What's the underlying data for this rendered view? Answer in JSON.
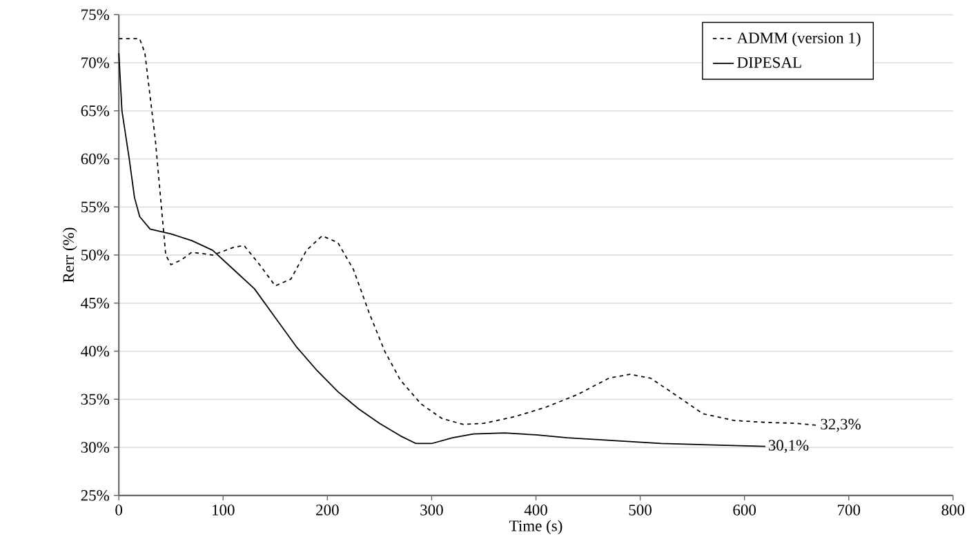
{
  "chart_data": {
    "type": "line",
    "xlabel": "Time (s)",
    "ylabel": "Rerr (%)",
    "xlim": [
      0,
      800
    ],
    "xticks": [
      0,
      100,
      200,
      300,
      400,
      500,
      600,
      700,
      800
    ],
    "ylim": [
      25,
      75
    ],
    "yticks": [
      {
        "value": 25,
        "label": "25%"
      },
      {
        "value": 30,
        "label": "30%"
      },
      {
        "value": 35,
        "label": "35%"
      },
      {
        "value": 40,
        "label": "40%"
      },
      {
        "value": 45,
        "label": "45%"
      },
      {
        "value": 50,
        "label": "50%"
      },
      {
        "value": 55,
        "label": "55%"
      },
      {
        "value": 60,
        "label": "60%"
      },
      {
        "value": 65,
        "label": "65%"
      },
      {
        "value": 70,
        "label": "70%"
      },
      {
        "value": 75,
        "label": "75%"
      }
    ],
    "grid": "y",
    "legend": "top right",
    "series": [
      {
        "name": "ADMM (version 1)",
        "color": "#000000",
        "line_style": "dashed",
        "x": [
          0,
          20,
          25,
          35,
          45,
          50,
          60,
          70,
          90,
          110,
          120,
          135,
          150,
          165,
          180,
          195,
          210,
          225,
          240,
          255,
          270,
          290,
          310,
          330,
          350,
          380,
          410,
          440,
          470,
          490,
          510,
          540,
          560,
          590,
          620,
          650,
          670
        ],
        "values": [
          72.5,
          72.5,
          71,
          62,
          50,
          49,
          49.5,
          50.3,
          50,
          50.8,
          51,
          49,
          46.8,
          47.5,
          50.5,
          52,
          51.3,
          48.5,
          44,
          40,
          37,
          34.5,
          33,
          32.4,
          32.5,
          33.2,
          34.2,
          35.5,
          37.2,
          37.6,
          37.2,
          35,
          33.5,
          32.8,
          32.6,
          32.5,
          32.3
        ]
      },
      {
        "name": "DIPESAL",
        "color": "#000000",
        "line_style": "solid",
        "x": [
          0,
          3,
          10,
          15,
          20,
          30,
          50,
          70,
          90,
          110,
          130,
          150,
          170,
          190,
          210,
          230,
          250,
          270,
          285,
          300,
          320,
          340,
          370,
          400,
          430,
          460,
          490,
          520,
          620
        ],
        "values": [
          71,
          65,
          60,
          56,
          54,
          52.7,
          52.2,
          51.5,
          50.5,
          48.5,
          46.5,
          43.5,
          40.5,
          38,
          35.8,
          34,
          32.5,
          31.2,
          30.4,
          30.4,
          31,
          31.4,
          31.5,
          31.3,
          31,
          30.8,
          30.6,
          30.4,
          30.1
        ]
      }
    ],
    "annotations": [
      {
        "text": "32,3%",
        "x": 670,
        "y": 32.3
      },
      {
        "text": "30,1%",
        "x": 620,
        "y": 30.1
      }
    ]
  }
}
